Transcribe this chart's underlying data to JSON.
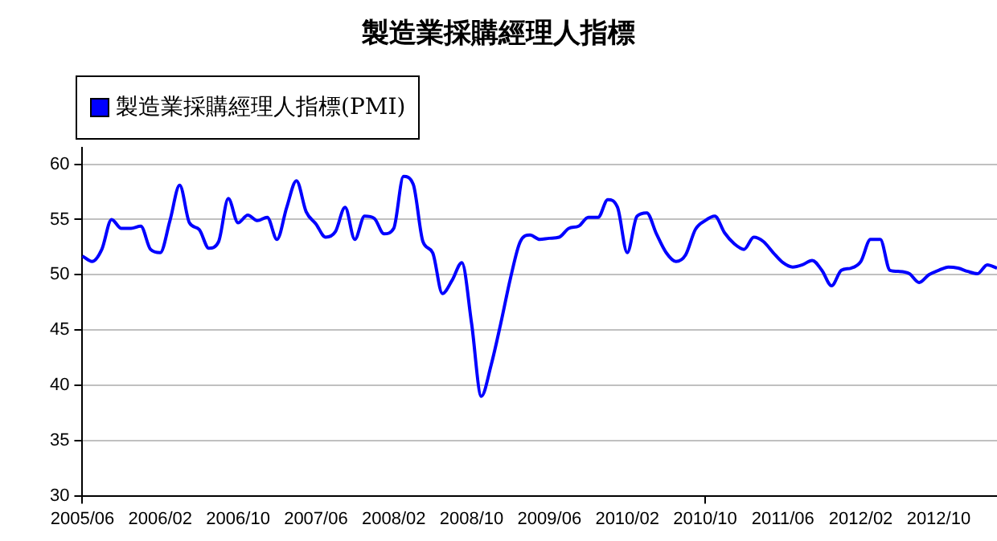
{
  "chart_data": {
    "type": "line",
    "title": "製造業採購經理人指標",
    "legend": "top left",
    "categories": [
      "2005/06",
      null,
      null,
      null,
      null,
      null,
      null,
      null,
      "2006/02",
      null,
      null,
      null,
      null,
      null,
      null,
      null,
      "2006/10",
      null,
      null,
      null,
      null,
      null,
      null,
      null,
      "2007/06",
      null,
      null,
      null,
      null,
      null,
      null,
      null,
      "2008/02",
      null,
      null,
      null,
      null,
      null,
      null,
      null,
      "2008/10",
      null,
      null,
      null,
      null,
      null,
      null,
      null,
      "2009/06",
      null,
      null,
      null,
      null,
      null,
      null,
      null,
      "2010/02",
      null,
      null,
      null,
      null,
      null,
      null,
      null,
      "2010/10",
      null,
      null,
      null,
      null,
      null,
      null,
      null,
      "2011/06",
      null,
      null,
      null,
      null,
      null,
      null,
      null,
      "2012/02",
      null,
      null,
      null,
      null,
      null,
      null,
      null,
      "2012/10",
      null,
      null,
      null,
      null,
      null,
      null
    ],
    "series": [
      {
        "name": "製造業採購經理人指標(PMI)",
        "color": "#0000ff",
        "values": [
          51.7,
          51.2,
          52.3,
          55.0,
          54.2,
          54.2,
          54.4,
          52.3,
          52.0,
          54.9,
          58.1,
          54.7,
          54.1,
          52.4,
          53.0,
          56.9,
          54.7,
          55.4,
          54.9,
          55.2,
          53.2,
          56.1,
          58.5,
          55.7,
          54.6,
          53.4,
          53.9,
          56.1,
          53.2,
          55.3,
          55.1,
          53.7,
          54.2,
          58.9,
          58.2,
          53.0,
          52.0,
          48.3,
          49.5,
          51.1,
          45.6,
          39.0,
          41.8,
          45.6,
          49.7,
          53.0,
          53.6,
          53.2,
          53.3,
          53.4,
          54.2,
          54.4,
          55.2,
          55.2,
          56.8,
          56.1,
          52.0,
          55.3,
          55.6,
          53.7,
          52.0,
          51.2,
          51.8,
          54.1,
          54.9,
          55.3,
          53.8,
          52.8,
          52.3,
          53.4,
          53.0,
          52.0,
          51.1,
          50.7,
          50.9,
          51.3,
          50.4,
          49.0,
          50.4,
          50.6,
          51.2,
          53.2,
          53.2,
          50.4,
          50.3,
          50.1,
          49.3,
          50.0,
          50.4,
          50.7,
          50.6,
          50.3,
          50.1,
          50.9,
          50.6
        ]
      }
    ],
    "ylim": [
      30,
      61.5
    ],
    "yticks": [
      30,
      35,
      40,
      45,
      50,
      55,
      60
    ],
    "grid": "y",
    "marker": "none",
    "line_style": "solid"
  }
}
